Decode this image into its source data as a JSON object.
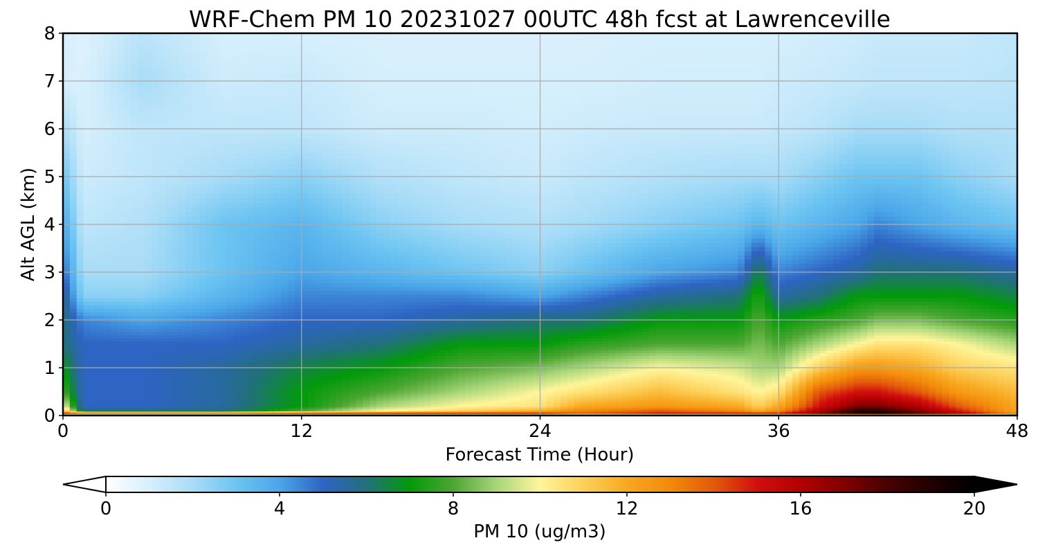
{
  "chart_data": {
    "type": "heatmap",
    "title": "WRF-Chem PM 10  20231027 00UTC 48h fcst at Lawrenceville",
    "xlabel": "Forecast Time (Hour)",
    "ylabel": "Alt AGL (km)",
    "xlim": [
      0,
      48
    ],
    "ylim": [
      0,
      8
    ],
    "x_ticks": [
      "0",
      "12",
      "24",
      "36",
      "48"
    ],
    "y_ticks": [
      "0",
      "1",
      "2",
      "3",
      "4",
      "5",
      "6",
      "7",
      "8"
    ],
    "grid": true,
    "colorbar": {
      "label": "PM 10  (ug/m3)",
      "ticks": [
        "0",
        "4",
        "8",
        "12",
        "16",
        "20"
      ],
      "range": [
        0,
        20
      ],
      "extend": "both",
      "orientation": "horizontal",
      "stops": [
        {
          "v": 0,
          "c": "#ffffff"
        },
        {
          "v": 1,
          "c": "#d6effc"
        },
        {
          "v": 2,
          "c": "#a8dcf7"
        },
        {
          "v": 3,
          "c": "#6cc4f2"
        },
        {
          "v": 4,
          "c": "#4aa6e8"
        },
        {
          "v": 5,
          "c": "#2e64c4"
        },
        {
          "v": 6,
          "c": "#21707a"
        },
        {
          "v": 7,
          "c": "#029a0a"
        },
        {
          "v": 8,
          "c": "#4ca632"
        },
        {
          "v": 9,
          "c": "#a8d67a"
        },
        {
          "v": 10,
          "c": "#fff59a"
        },
        {
          "v": 11,
          "c": "#fcd05a"
        },
        {
          "v": 12,
          "c": "#f8a820"
        },
        {
          "v": 13,
          "c": "#f28a0a"
        },
        {
          "v": 14,
          "c": "#e25a0a"
        },
        {
          "v": 15,
          "c": "#d10e0e"
        },
        {
          "v": 16,
          "c": "#b40000"
        },
        {
          "v": 17,
          "c": "#800000"
        },
        {
          "v": 18,
          "c": "#4a0000"
        },
        {
          "v": 19,
          "c": "#200000"
        },
        {
          "v": 20,
          "c": "#000000"
        }
      ]
    },
    "field": {
      "times": [
        0,
        1,
        4,
        8,
        12,
        16,
        20,
        24,
        26,
        30,
        34,
        35,
        36,
        38,
        40,
        41,
        43,
        45,
        48
      ],
      "heights": [
        0,
        0.05,
        0.1,
        0.2,
        0.5,
        1,
        1.5,
        2,
        2.5,
        3,
        4,
        5,
        6,
        7,
        8
      ],
      "values": [
        [
          0,
          15,
          12,
          10,
          8,
          7,
          6,
          6,
          6,
          5,
          4,
          3,
          2,
          1,
          1
        ],
        [
          0,
          14,
          6,
          5,
          5,
          5,
          5,
          4.5,
          2.5,
          2,
          1.5,
          1.2,
          1,
          0.9,
          0.8
        ],
        [
          0,
          14,
          6,
          5,
          5,
          5,
          5,
          4,
          2.5,
          2,
          1.8,
          1.5,
          1.5,
          2,
          1.6
        ],
        [
          0,
          14,
          6,
          5.5,
          5.5,
          5.5,
          5,
          4.5,
          3.5,
          3,
          3,
          2,
          1.5,
          1.2,
          1
        ],
        [
          0,
          15,
          8,
          7,
          7,
          6.5,
          5.5,
          5,
          4.5,
          4,
          3.5,
          2.5,
          1.5,
          1.3,
          1
        ],
        [
          0,
          15,
          10,
          9,
          8,
          7,
          6,
          5,
          4.5,
          3.5,
          2.5,
          1.8,
          1.2,
          1,
          0.9
        ],
        [
          0,
          15,
          11,
          10,
          9,
          8,
          7,
          5.5,
          4.5,
          3,
          2,
          1.5,
          1.2,
          1,
          0.9
        ],
        [
          0,
          15,
          12,
          10.5,
          10,
          8.5,
          7,
          6,
          4,
          2.5,
          1.8,
          1.3,
          1.1,
          1,
          0.9
        ],
        [
          0,
          14,
          13,
          12,
          10.5,
          9,
          7.5,
          6,
          4.5,
          3,
          2,
          1.5,
          1.2,
          1,
          0.9
        ],
        [
          0,
          15,
          14,
          12.5,
          11.5,
          10,
          8,
          7,
          5.5,
          4,
          2.5,
          1.8,
          1.3,
          1.1,
          1
        ],
        [
          0,
          15,
          13,
          12,
          10.5,
          9.5,
          8,
          7,
          6,
          4.5,
          3,
          2,
          1.3,
          1.1,
          1
        ],
        [
          0,
          15,
          12,
          11,
          10,
          9,
          8.5,
          8,
          7.5,
          6.5,
          3.5,
          2,
          1.3,
          1.1,
          1
        ],
        [
          0,
          15,
          13,
          12,
          10.5,
          9,
          8,
          7,
          5.5,
          4.5,
          3,
          2,
          1.4,
          1.2,
          1
        ],
        [
          0,
          17,
          16,
          15,
          14,
          11,
          9,
          7.5,
          6,
          5,
          3.5,
          2.5,
          1.6,
          1.3,
          1.1
        ],
        [
          0,
          19,
          19,
          17,
          15,
          12.5,
          10,
          8,
          7,
          5.5,
          4,
          3,
          2,
          1.4,
          1.2
        ],
        [
          0,
          19.5,
          19,
          17,
          15,
          12.5,
          10.5,
          8.5,
          7,
          6,
          4.5,
          3,
          2,
          1.5,
          1.3
        ],
        [
          0,
          18,
          17,
          16,
          14,
          12,
          10.5,
          8.5,
          7,
          6,
          4,
          3,
          2,
          1.5,
          1.3
        ],
        [
          0,
          16,
          15,
          14,
          12.5,
          11,
          10,
          8,
          7,
          6,
          3.5,
          2.5,
          1.8,
          1.5,
          1.3
        ],
        [
          0,
          13,
          12,
          12,
          11.5,
          10.5,
          9,
          7.5,
          6.5,
          5.5,
          3,
          2,
          1.8,
          1.6,
          1.5
        ]
      ]
    }
  }
}
